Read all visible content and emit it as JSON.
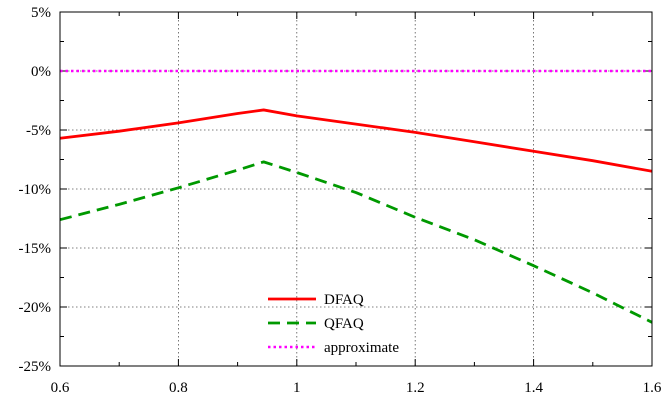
{
  "chart_data": {
    "type": "line",
    "title": "",
    "xlabel": "",
    "ylabel": "",
    "xlim": [
      0.6,
      1.6
    ],
    "ylim": [
      -25,
      5
    ],
    "x_ticks": [
      {
        "value": 0.6,
        "label": "0.6"
      },
      {
        "value": 0.8,
        "label": "0.8"
      },
      {
        "value": 1.0,
        "label": "1"
      },
      {
        "value": 1.2,
        "label": "1.2"
      },
      {
        "value": 1.4,
        "label": "1.4"
      },
      {
        "value": 1.6,
        "label": "1.6"
      }
    ],
    "y_ticks": [
      {
        "value": 5,
        "label": "5%"
      },
      {
        "value": 0,
        "label": "0%"
      },
      {
        "value": -5,
        "label": "-5%"
      },
      {
        "value": -10,
        "label": "-10%"
      },
      {
        "value": -15,
        "label": "-15%"
      },
      {
        "value": -20,
        "label": "-20%"
      },
      {
        "value": -25,
        "label": "-25%"
      }
    ],
    "grid": true,
    "legend_position": "bottom-center",
    "series": [
      {
        "name": "DFAQ",
        "color": "#ff0000",
        "style": "solid",
        "x": [
          0.6,
          0.7,
          0.8,
          0.9,
          0.944,
          1.0,
          1.1,
          1.2,
          1.3,
          1.4,
          1.5,
          1.6
        ],
        "y": [
          -5.7,
          -5.1,
          -4.4,
          -3.6,
          -3.3,
          -3.8,
          -4.5,
          -5.2,
          -6.0,
          -6.8,
          -7.6,
          -8.5
        ]
      },
      {
        "name": "QFAQ",
        "color": "#009900",
        "style": "dashed",
        "x": [
          0.6,
          0.7,
          0.8,
          0.9,
          0.944,
          1.0,
          1.1,
          1.2,
          1.3,
          1.4,
          1.5,
          1.6
        ],
        "y": [
          -12.6,
          -11.3,
          -9.9,
          -8.4,
          -7.7,
          -8.6,
          -10.3,
          -12.4,
          -14.3,
          -16.5,
          -18.8,
          -21.3
        ]
      },
      {
        "name": "approximate",
        "color": "#ff00ff",
        "style": "dotted",
        "x": [
          0.6,
          1.6
        ],
        "y": [
          0,
          0
        ]
      }
    ]
  }
}
